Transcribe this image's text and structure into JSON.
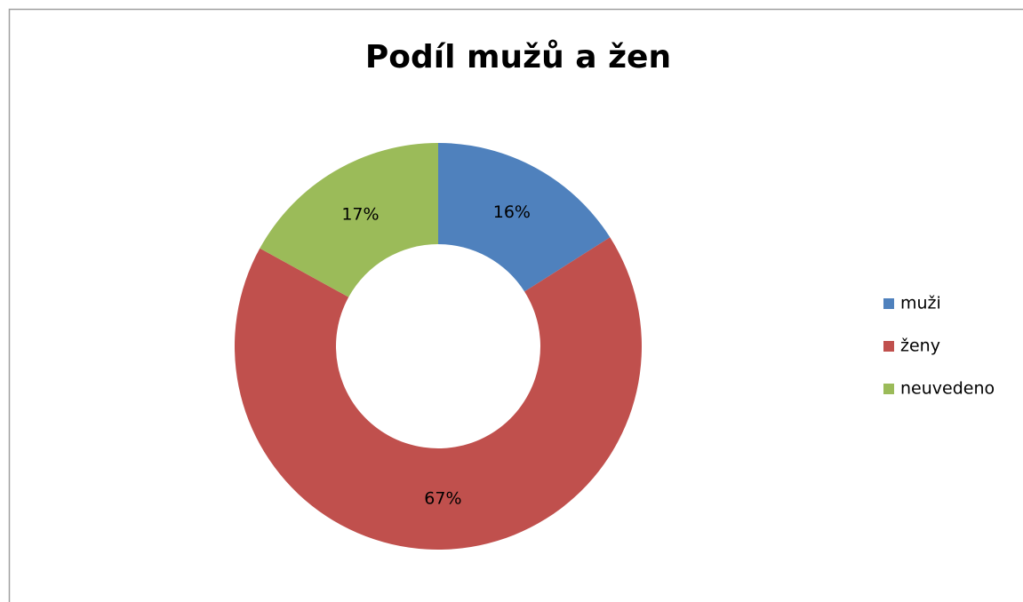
{
  "chart_data": {
    "type": "pie",
    "title": "Podíl mužů a žen",
    "categories": [
      "muži",
      "ženy",
      "neuvedeno"
    ],
    "values": [
      16,
      67,
      17
    ],
    "value_labels": [
      "16%",
      "67%",
      "17%"
    ],
    "colors": [
      "#4f81bd",
      "#c0504d",
      "#9bbb59"
    ],
    "donut": true,
    "legend": "right"
  }
}
